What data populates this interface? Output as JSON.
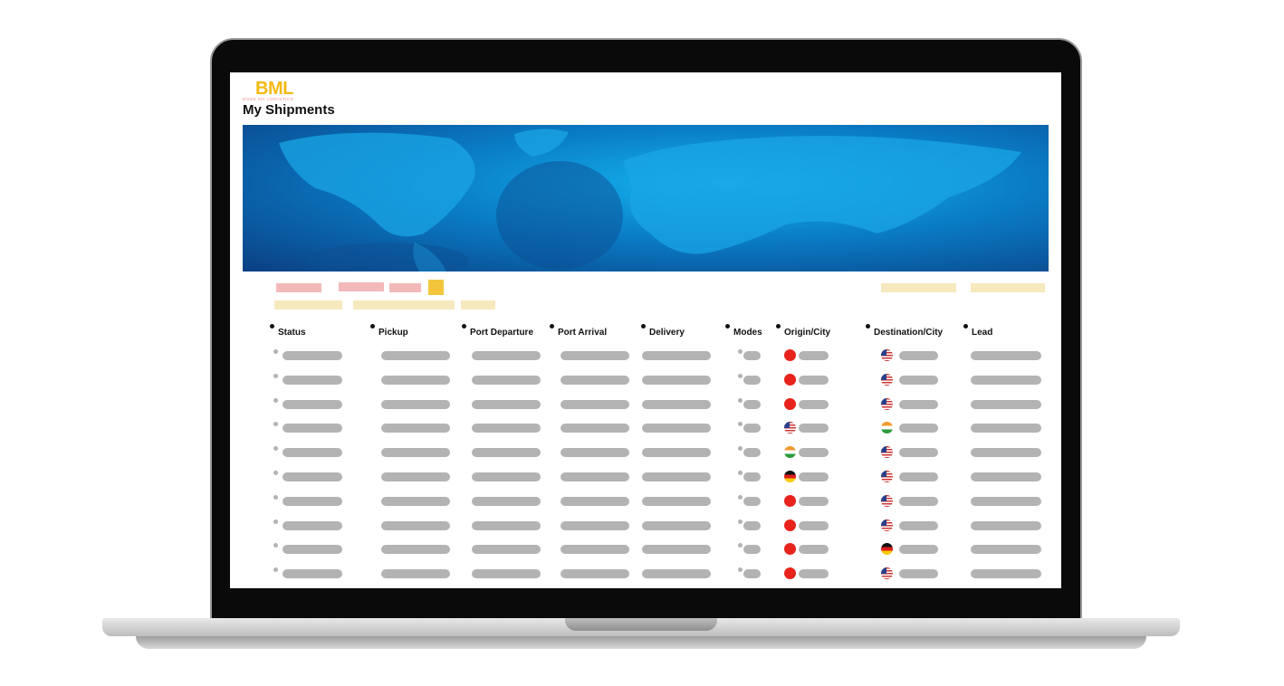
{
  "app": {
    "logo": "BML",
    "logo_tagline": "BOOK MY LOGISTICS",
    "title": "My Shipments"
  },
  "colors": {
    "logo": "#f5b914",
    "filter_pink": "#f3b9b9",
    "filter_cream": "#f8e8bd",
    "filter_active": "#f2c53d",
    "skeleton": "#b3b3b3",
    "banner": "#0a7cc6"
  },
  "table": {
    "columns": [
      "Status",
      "Pickup",
      "Port Departure",
      "Port Arrival",
      "Delivery",
      "Modes",
      "Origin/City",
      "Destination/City",
      "Lead"
    ],
    "rows": [
      {
        "origin_flag": "cn",
        "destination_flag": "us"
      },
      {
        "origin_flag": "cn",
        "destination_flag": "us"
      },
      {
        "origin_flag": "cn",
        "destination_flag": "us"
      },
      {
        "origin_flag": "us",
        "destination_flag": "in"
      },
      {
        "origin_flag": "in",
        "destination_flag": "us"
      },
      {
        "origin_flag": "de",
        "destination_flag": "us"
      },
      {
        "origin_flag": "cn",
        "destination_flag": "us"
      },
      {
        "origin_flag": "cn",
        "destination_flag": "us"
      },
      {
        "origin_flag": "cn",
        "destination_flag": "de"
      },
      {
        "origin_flag": "cn",
        "destination_flag": "us"
      }
    ]
  }
}
